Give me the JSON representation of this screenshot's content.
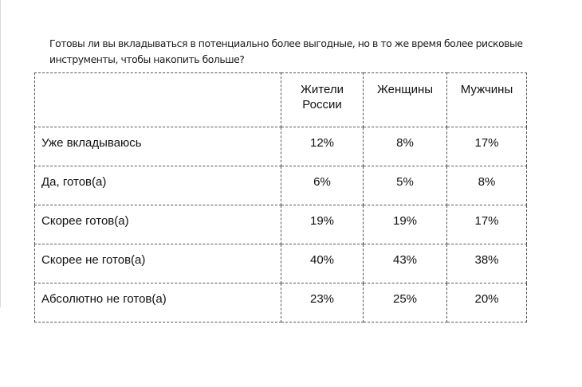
{
  "document": {
    "question": "Готовы ли вы вкладываться в потенциально более выгодные, но в то же время более рисковые инструменты, чтобы накопить больше?"
  },
  "table": {
    "headers": [
      "",
      "Жители России",
      "Женщины",
      "Мужчины"
    ],
    "rows": [
      {
        "label": "Уже вкладываюсь",
        "values": [
          "12%",
          "8%",
          "17%"
        ]
      },
      {
        "label": "Да, готов(а)",
        "values": [
          "6%",
          "5%",
          "8%"
        ]
      },
      {
        "label": "Скорее готов(а)",
        "values": [
          "19%",
          "19%",
          "17%"
        ]
      },
      {
        "label": "Скорее не готов(а)",
        "values": [
          "40%",
          "43%",
          "38%"
        ]
      },
      {
        "label": "Абсолютно не готов(а)",
        "values": [
          "23%",
          "25%",
          "20%"
        ]
      }
    ]
  },
  "chart_data": {
    "type": "table",
    "title": "Готовы ли вы вкладываться в потенциально более выгодные, но в то же время более рисковые инструменты, чтобы накопить больше?",
    "categories": [
      "Уже вкладываюсь",
      "Да, готов(а)",
      "Скорее готов(а)",
      "Скорее не готов(а)",
      "Абсолютно не готов(а)"
    ],
    "series": [
      {
        "name": "Жители России",
        "values": [
          12,
          6,
          19,
          40,
          23
        ]
      },
      {
        "name": "Женщины",
        "values": [
          8,
          5,
          19,
          43,
          25
        ]
      },
      {
        "name": "Мужчины",
        "values": [
          17,
          8,
          17,
          38,
          20
        ]
      }
    ],
    "unit": "%"
  }
}
